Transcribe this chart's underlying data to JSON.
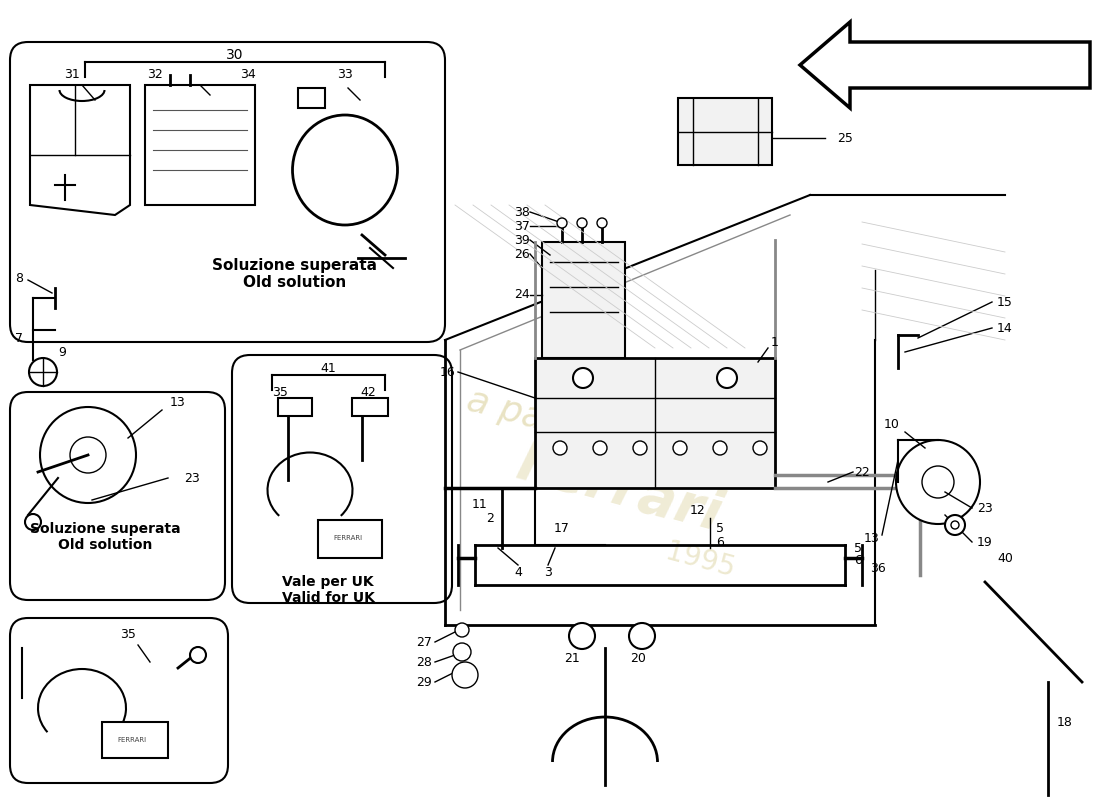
{
  "bg_color": "#ffffff",
  "line_color": "#000000",
  "watermark_color": "#d4c88a",
  "labels": {
    "soluzione_superata_1": "Soluzione superata\nOld solution",
    "soluzione_superata_2": "Soluzione superata\nOld solution",
    "vale_per_uk": "Vale per UK\nValid for UK"
  }
}
